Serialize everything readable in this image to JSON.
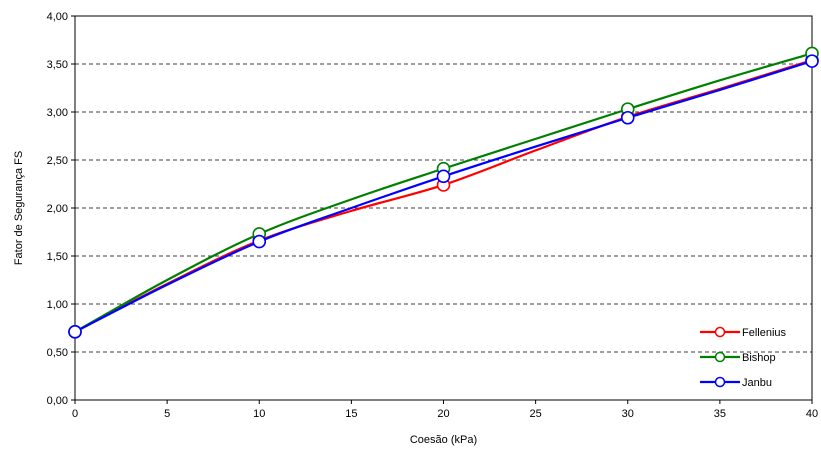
{
  "chart_data": {
    "type": "line",
    "title": "",
    "xlabel": "Coesão (kPa)",
    "ylabel": "Fator de Segurança FS",
    "xlim": [
      0,
      40
    ],
    "ylim": [
      0,
      4
    ],
    "x_ticks": [
      0,
      5,
      10,
      15,
      20,
      25,
      30,
      35,
      40
    ],
    "x_tick_labels": [
      "0",
      "5",
      "10",
      "15",
      "20",
      "25",
      "30",
      "35",
      "40"
    ],
    "y_ticks": [
      0,
      0.5,
      1,
      1.5,
      2,
      2.5,
      3,
      3.5,
      4
    ],
    "y_tick_labels": [
      "0,00",
      "0,50",
      "1,00",
      "1,50",
      "2,00",
      "2,50",
      "3,00",
      "3,50",
      "4,00"
    ],
    "grid": "horizontal dashed",
    "legend_position": "bottom-right",
    "markers_x": [
      0,
      10,
      20,
      30,
      40
    ],
    "series": [
      {
        "name": "Fellenius",
        "color": "#ff0000",
        "x": [
          0,
          5,
          10,
          15,
          20,
          25,
          30,
          35,
          40
        ],
        "values": [
          0.71,
          1.21,
          1.66,
          1.97,
          2.24,
          2.6,
          2.95,
          3.24,
          3.54
        ],
        "marker_values": [
          0.71,
          1.66,
          2.24,
          2.95,
          3.54
        ]
      },
      {
        "name": "Bishop",
        "color": "#008000",
        "x": [
          0,
          5,
          10,
          15,
          20,
          25,
          30,
          35,
          40
        ],
        "values": [
          0.71,
          1.25,
          1.73,
          2.09,
          2.41,
          2.72,
          3.03,
          3.33,
          3.61
        ],
        "marker_values": [
          0.71,
          1.73,
          2.41,
          3.03,
          3.61
        ]
      },
      {
        "name": "Janbu",
        "color": "#0000ff",
        "x": [
          0,
          5,
          10,
          15,
          20,
          25,
          30,
          35,
          40
        ],
        "values": [
          0.71,
          1.2,
          1.65,
          2.0,
          2.33,
          2.64,
          2.94,
          3.23,
          3.53
        ],
        "marker_values": [
          0.71,
          1.65,
          2.33,
          2.94,
          3.53
        ]
      }
    ]
  }
}
